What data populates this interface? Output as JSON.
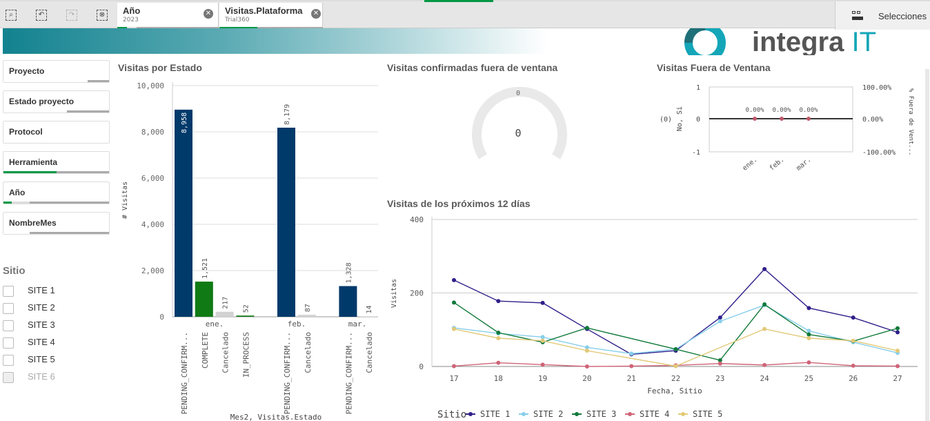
{
  "toolbar": {
    "icons": [
      "smart-search-icon",
      "step-back-icon",
      "step-forward-icon",
      "clear-selections-icon"
    ],
    "selections_label": "Selecciones"
  },
  "chips": [
    {
      "title": "Año",
      "value": "2023"
    },
    {
      "title": "Visitas.Plataforma",
      "value": "Trial360"
    }
  ],
  "logo": {
    "text": "integra",
    "accent": "IT"
  },
  "filters": [
    {
      "label": "Proyecto"
    },
    {
      "label": "Estado proyecto"
    },
    {
      "label": "Protocol"
    },
    {
      "label": "Herramienta"
    },
    {
      "label": "Año"
    },
    {
      "label": "NombreMes"
    }
  ],
  "sitio": {
    "title": "Sitio",
    "items": [
      "SITE 1",
      "SITE 2",
      "SITE 3",
      "SITE 4",
      "SITE 5",
      "SITE 6"
    ]
  },
  "chart_data": [
    {
      "type": "bar",
      "title": "Visitas por Estado",
      "xlabel": "Mes2, Visitas.Estado",
      "ylabel": "# Visitas",
      "ylim": [
        0,
        10000
      ],
      "yticks": [
        "0",
        "2,000",
        "4,000",
        "6,000",
        "8,000",
        "10,000"
      ],
      "groups": [
        "ene.",
        "feb.",
        "mar."
      ],
      "bars": [
        {
          "group": "ene.",
          "label": "PENDING_CONFIRM...",
          "value": 8958,
          "text": "8,958",
          "color": "#003a6b"
        },
        {
          "group": "ene.",
          "label": "COMPLETE",
          "value": 1521,
          "text": "1,521",
          "color": "#107a14"
        },
        {
          "group": "ene.",
          "label": "Cancelado",
          "value": 217,
          "text": "217",
          "color": "#d2d2d2"
        },
        {
          "group": "ene.",
          "label": "IN_PROCESS",
          "value": 52,
          "text": "52",
          "color": "#107a14"
        },
        {
          "group": "feb.",
          "label": "PENDING_CONFIRM...",
          "value": 8179,
          "text": "8,179",
          "color": "#003a6b"
        },
        {
          "group": "feb.",
          "label": "Cancelado",
          "value": 87,
          "text": "87",
          "color": "#d2d2d2"
        },
        {
          "group": "mar.",
          "label": "PENDING_CONFIRM...",
          "value": 1328,
          "text": "1,328",
          "color": "#003a6b"
        },
        {
          "group": "mar.",
          "label": "Cancelado",
          "value": 14,
          "text": "14",
          "color": "#d2d2d2"
        }
      ]
    },
    {
      "type": "gauge",
      "title": "Visitas confirmadas fuera de ventana",
      "value": 0,
      "value_text": "0",
      "max_text": "0"
    },
    {
      "type": "combo",
      "title": "Visitas Fuera de Ventana",
      "categories": [
        "ene.",
        "feb.",
        "mar."
      ],
      "ylabel": "No, Si",
      "ylabel_prefix": "(0)",
      "y2label": "% Fuera de Vent...",
      "yticks": [
        "1",
        "0",
        "-1"
      ],
      "y2ticks": [
        "100.00%",
        "0.00%",
        "-100.00%"
      ],
      "values": [
        0,
        0,
        0
      ],
      "labels": [
        "0.00%",
        "0.00%",
        "0.00%"
      ]
    },
    {
      "type": "line",
      "title": "Visitas de los próximos 12 días",
      "xlabel": "Fecha, Sitio",
      "ylabel": "Visitas",
      "ylim": [
        0,
        400
      ],
      "yticks": [
        "0",
        "200",
        "400"
      ],
      "legend_title": "Sitio",
      "legend": "bottom-left",
      "x": [
        "17",
        "18",
        "19",
        "20",
        "21",
        "22",
        "23",
        "24",
        "25",
        "26",
        "27"
      ],
      "series": [
        {
          "name": "SITE 1",
          "color": "#2f1f8a",
          "values": [
            235,
            178,
            173,
            102,
            33,
            43,
            133,
            265,
            159,
            133,
            93
          ]
        },
        {
          "name": "SITE 2",
          "color": "#87ceeb",
          "values": [
            105,
            90,
            80,
            52,
            35,
            47,
            123,
            167,
            97,
            66,
            37
          ]
        },
        {
          "name": "SITE 3",
          "color": "#107a3a",
          "values": [
            174,
            92,
            66,
            105,
            null,
            47,
            17,
            169,
            87,
            69,
            104
          ]
        },
        {
          "name": "SITE 4",
          "color": "#d06478",
          "values": [
            1,
            10,
            5,
            0,
            1,
            3,
            8,
            4,
            11,
            2,
            1
          ]
        },
        {
          "name": "SITE 5",
          "color": "#e3c978",
          "values": [
            102,
            77,
            70,
            43,
            null,
            1,
            null,
            102,
            77,
            70,
            43
          ]
        }
      ]
    }
  ]
}
